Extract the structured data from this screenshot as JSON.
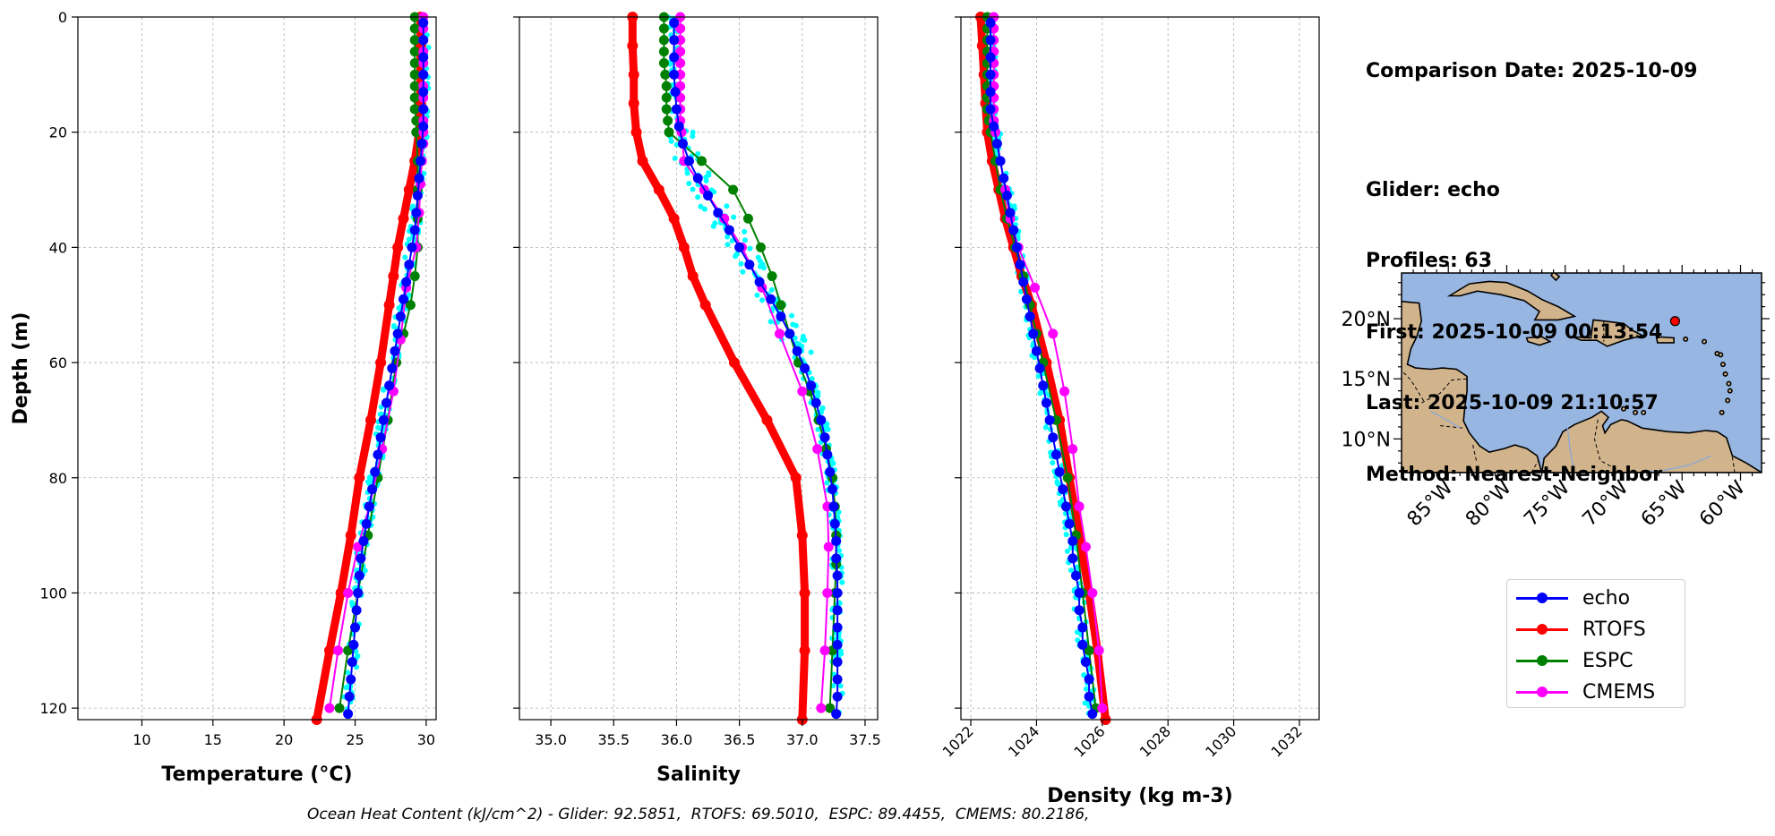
{
  "info": {
    "lines": [
      "Comparison Date: 2025-10-09",
      "",
      "Glider: echo",
      "Profiles: 63",
      "First: 2025-10-09 00:13:54",
      "Last: 2025-10-09 21:10:57",
      "Method: Nearest-Neighbor"
    ]
  },
  "footer": "Ocean Heat Content (kJ/cm^2) - Glider: 92.5851,  RTOFS: 69.5010,  ESPC: 89.4455,  CMEMS: 80.2186,",
  "legend": [
    {
      "name": "echo",
      "color": "#0000ff"
    },
    {
      "name": "RTOFS",
      "color": "#ff0000"
    },
    {
      "name": "ESPC",
      "color": "#008000"
    },
    {
      "name": "CMEMS",
      "color": "#ff00ff"
    }
  ],
  "colors": {
    "scatter": "#00ffff",
    "grid": "#b0b0b0"
  },
  "chart_data": [
    {
      "type": "line",
      "xlabel": "Temperature (°C)",
      "ylabel": "Depth (m)",
      "xlim": [
        5.5,
        30.7
      ],
      "ylim": [
        122,
        0
      ],
      "xticks": [
        10,
        15,
        20,
        25,
        30
      ],
      "yticks": [
        0,
        20,
        40,
        60,
        80,
        100,
        120
      ],
      "series": [
        {
          "name": "echo",
          "y": [
            1,
            4,
            7,
            10,
            13,
            16,
            19,
            22,
            25,
            28,
            31,
            34,
            37,
            40,
            43,
            46,
            49,
            52,
            55,
            58,
            61,
            64,
            67,
            70,
            73,
            76,
            79,
            82,
            85,
            88,
            91,
            94,
            97,
            100,
            103,
            106,
            109,
            112,
            115,
            118,
            121
          ],
          "x": [
            29.8,
            29.8,
            29.8,
            29.8,
            29.8,
            29.8,
            29.8,
            29.7,
            29.6,
            29.5,
            29.4,
            29.3,
            29.2,
            29.0,
            28.8,
            28.6,
            28.4,
            28.2,
            28.0,
            27.8,
            27.6,
            27.4,
            27.2,
            27.0,
            26.8,
            26.6,
            26.4,
            26.2,
            26.0,
            25.8,
            25.6,
            25.4,
            25.3,
            25.2,
            25.1,
            25.0,
            24.9,
            24.8,
            24.7,
            24.6,
            24.5
          ]
        },
        {
          "name": "RTOFS",
          "y": [
            0,
            5,
            10,
            15,
            20,
            25,
            30,
            35,
            40,
            45,
            50,
            60,
            70,
            80,
            90,
            100,
            110,
            122
          ],
          "x": [
            29.6,
            29.6,
            29.6,
            29.6,
            29.5,
            29.2,
            28.8,
            28.4,
            28.0,
            27.7,
            27.4,
            26.8,
            26.1,
            25.3,
            24.7,
            24.0,
            23.2,
            22.3
          ]
        },
        {
          "name": "ESPC",
          "y": [
            0,
            2,
            4,
            6,
            8,
            10,
            12,
            14,
            16,
            18,
            20,
            25,
            30,
            35,
            40,
            45,
            50,
            55,
            60,
            70,
            80,
            90,
            100,
            110,
            120
          ],
          "x": [
            29.2,
            29.2,
            29.2,
            29.2,
            29.2,
            29.2,
            29.2,
            29.2,
            29.2,
            29.3,
            29.3,
            29.4,
            29.4,
            29.4,
            29.4,
            29.2,
            28.9,
            28.4,
            27.9,
            27.3,
            26.6,
            25.9,
            25.2,
            24.5,
            23.9
          ]
        },
        {
          "name": "CMEMS",
          "y": [
            0,
            2,
            4,
            6,
            8,
            10,
            12,
            14,
            16,
            18,
            20,
            22,
            25,
            29,
            34,
            40,
            47,
            56,
            65,
            75,
            85,
            92,
            100,
            110,
            120
          ],
          "x": [
            29.8,
            29.8,
            29.8,
            29.8,
            29.8,
            29.8,
            29.8,
            29.8,
            29.8,
            29.8,
            29.8,
            29.8,
            29.7,
            29.6,
            29.5,
            29.3,
            28.6,
            28.2,
            27.7,
            26.9,
            26.0,
            25.2,
            24.5,
            23.8,
            23.2
          ]
        }
      ]
    },
    {
      "type": "line",
      "xlabel": "Salinity",
      "xlim": [
        34.75,
        37.6
      ],
      "ylim": [
        122,
        0
      ],
      "xticks": [
        35.0,
        35.5,
        36.0,
        36.5,
        37.0,
        37.5
      ],
      "xtick_labels": [
        "35.0",
        "35.5",
        "36.0",
        "36.5",
        "37.0",
        "37.5"
      ],
      "yticks": [
        0,
        20,
        40,
        60,
        80,
        100,
        120
      ],
      "series": [
        {
          "name": "echo",
          "y": [
            1,
            4,
            7,
            10,
            13,
            16,
            19,
            22,
            25,
            28,
            31,
            34,
            37,
            40,
            43,
            46,
            49,
            52,
            55,
            58,
            61,
            64,
            67,
            70,
            73,
            76,
            79,
            82,
            85,
            88,
            91,
            94,
            97,
            100,
            103,
            106,
            109,
            112,
            115,
            118,
            121
          ],
          "x": [
            35.98,
            35.98,
            35.98,
            35.98,
            35.99,
            36.0,
            36.02,
            36.05,
            36.1,
            36.17,
            36.25,
            36.33,
            36.42,
            36.5,
            36.58,
            36.66,
            36.75,
            36.83,
            36.9,
            36.96,
            37.02,
            37.07,
            37.11,
            37.15,
            37.18,
            37.2,
            37.22,
            37.24,
            37.25,
            37.26,
            37.27,
            37.27,
            37.28,
            37.28,
            37.28,
            37.28,
            37.28,
            37.28,
            37.28,
            37.28,
            37.27
          ]
        },
        {
          "name": "RTOFS",
          "y": [
            0,
            5,
            10,
            15,
            20,
            25,
            30,
            35,
            40,
            45,
            50,
            60,
            70,
            80,
            90,
            100,
            110,
            122
          ],
          "x": [
            35.65,
            35.65,
            35.66,
            35.66,
            35.68,
            35.73,
            35.86,
            35.98,
            36.06,
            36.13,
            36.23,
            36.46,
            36.72,
            36.95,
            37.0,
            37.02,
            37.02,
            37.0
          ]
        },
        {
          "name": "ESPC",
          "y": [
            0,
            2,
            4,
            6,
            8,
            10,
            12,
            14,
            16,
            18,
            20,
            25,
            30,
            35,
            40,
            45,
            50,
            55,
            60,
            65,
            70,
            75,
            80,
            85,
            90,
            95,
            100,
            110,
            120
          ],
          "x": [
            35.9,
            35.9,
            35.9,
            35.9,
            35.9,
            35.91,
            35.92,
            35.92,
            35.92,
            35.93,
            35.94,
            36.2,
            36.45,
            36.57,
            36.67,
            36.76,
            36.83,
            36.9,
            36.97,
            37.06,
            37.13,
            37.19,
            37.24,
            37.26,
            37.27,
            37.27,
            37.26,
            37.24,
            37.22
          ]
        },
        {
          "name": "CMEMS",
          "y": [
            0,
            2,
            4,
            6,
            8,
            10,
            12,
            14,
            16,
            18,
            20,
            25,
            30,
            35,
            40,
            47,
            55,
            65,
            75,
            85,
            92,
            100,
            110,
            120
          ],
          "x": [
            36.03,
            36.03,
            36.03,
            36.03,
            36.03,
            36.03,
            36.03,
            36.03,
            36.03,
            36.03,
            36.04,
            36.06,
            36.22,
            36.38,
            36.52,
            36.68,
            36.82,
            37.0,
            37.12,
            37.2,
            37.21,
            37.2,
            37.18,
            37.15
          ]
        }
      ]
    },
    {
      "type": "line",
      "xlabel": "Density (kg m-3)",
      "xlim": [
        1021.7,
        1032.6
      ],
      "ylim": [
        122,
        0
      ],
      "xticks": [
        1022,
        1024,
        1026,
        1028,
        1030,
        1032
      ],
      "yticks": [
        0,
        20,
        40,
        60,
        80,
        100,
        120
      ],
      "series": [
        {
          "name": "echo",
          "y": [
            1,
            4,
            7,
            10,
            13,
            16,
            19,
            22,
            25,
            28,
            31,
            34,
            37,
            40,
            43,
            46,
            49,
            52,
            55,
            58,
            61,
            64,
            67,
            70,
            73,
            76,
            79,
            82,
            85,
            88,
            91,
            94,
            97,
            100,
            103,
            106,
            109,
            112,
            115,
            118,
            121
          ],
          "x": [
            1022.6,
            1022.6,
            1022.6,
            1022.6,
            1022.6,
            1022.6,
            1022.7,
            1022.8,
            1022.9,
            1023.0,
            1023.1,
            1023.2,
            1023.3,
            1023.4,
            1023.5,
            1023.6,
            1023.7,
            1023.8,
            1023.9,
            1024.0,
            1024.1,
            1024.2,
            1024.3,
            1024.4,
            1024.5,
            1024.6,
            1024.7,
            1024.8,
            1024.9,
            1025.0,
            1025.1,
            1025.1,
            1025.2,
            1025.3,
            1025.3,
            1025.4,
            1025.4,
            1025.5,
            1025.6,
            1025.6,
            1025.7
          ]
        },
        {
          "name": "RTOFS",
          "y": [
            0,
            5,
            10,
            15,
            20,
            25,
            30,
            35,
            40,
            45,
            50,
            60,
            70,
            80,
            90,
            100,
            110,
            122
          ],
          "x": [
            1022.3,
            1022.35,
            1022.4,
            1022.45,
            1022.5,
            1022.65,
            1022.85,
            1023.05,
            1023.3,
            1023.55,
            1023.85,
            1024.3,
            1024.7,
            1025.0,
            1025.3,
            1025.6,
            1025.85,
            1026.1
          ]
        },
        {
          "name": "ESPC",
          "y": [
            0,
            2,
            4,
            6,
            8,
            10,
            12,
            14,
            16,
            18,
            20,
            25,
            30,
            35,
            40,
            45,
            50,
            55,
            60,
            70,
            80,
            90,
            100,
            110,
            120
          ],
          "x": [
            1022.5,
            1022.5,
            1022.5,
            1022.5,
            1022.5,
            1022.5,
            1022.5,
            1022.5,
            1022.5,
            1022.55,
            1022.6,
            1022.75,
            1022.9,
            1023.1,
            1023.35,
            1023.6,
            1023.8,
            1024.0,
            1024.2,
            1024.6,
            1024.95,
            1025.2,
            1025.4,
            1025.6,
            1025.8
          ]
        },
        {
          "name": "CMEMS",
          "y": [
            0,
            2,
            4,
            6,
            8,
            10,
            12,
            14,
            16,
            18,
            20,
            25,
            30,
            35,
            40,
            47,
            55,
            65,
            75,
            85,
            92,
            100,
            110,
            120
          ],
          "x": [
            1022.7,
            1022.7,
            1022.7,
            1022.7,
            1022.7,
            1022.7,
            1022.7,
            1022.7,
            1022.7,
            1022.7,
            1022.75,
            1022.9,
            1023.05,
            1023.2,
            1023.45,
            1023.95,
            1024.5,
            1024.85,
            1025.1,
            1025.3,
            1025.5,
            1025.7,
            1025.9,
            1026.0
          ]
        }
      ]
    },
    {
      "type": "map",
      "lat_ticks": [
        10,
        15,
        20
      ],
      "lat_tick_labels": [
        "10°N",
        "15°N",
        "20°N"
      ],
      "lon_ticks": [
        -85,
        -80,
        -75,
        -70,
        -65,
        -60
      ],
      "lon_tick_labels": [
        "85°W",
        "80°W",
        "75°W",
        "70°W",
        "65°W",
        "60°W"
      ],
      "lon_range": [
        -89,
        -58.2
      ],
      "lat_range": [
        7.2,
        23.8
      ],
      "glider_position": {
        "lon": -65.6,
        "lat": 19.8
      },
      "ocean_color": "#97b6e1",
      "land_color": "#d2b48c"
    }
  ]
}
